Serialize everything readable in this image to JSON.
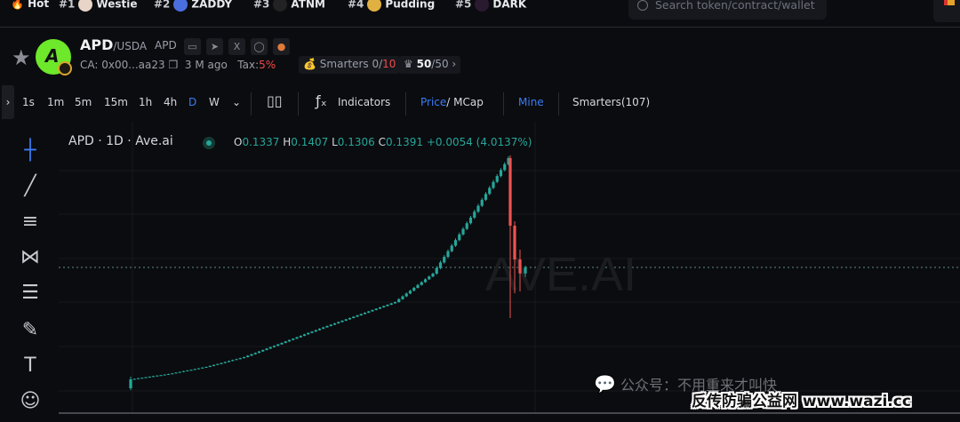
{
  "topbar": {
    "hot_label": "Hot",
    "items": [
      {
        "rank": "#1",
        "name": "Westie",
        "color": "#e8d5c8"
      },
      {
        "rank": "#2",
        "name": "ZADDY",
        "color": "#4a6ee0"
      },
      {
        "rank": "#3",
        "name": "ATNM",
        "color": "#222"
      },
      {
        "rank": "#4",
        "name": "Pudding",
        "color": "#e0b040"
      },
      {
        "rank": "#5",
        "name": "DARK",
        "color": "#2a1a30"
      }
    ],
    "search_placeholder": "Search token/contract/wallet"
  },
  "token": {
    "symbol": "APD",
    "pair": "/USDA",
    "symbol2": "APD",
    "ca": "CA: 0x00...aa23",
    "age": "3 M ago",
    "tax_label": "Tax:",
    "tax_value": "5%",
    "smarters_label": "Smarters",
    "smarters_value": "0/",
    "smarters_total": "10",
    "holders_value": "50",
    "holders_total": "/50"
  },
  "toolbar": {
    "timeframes": [
      "1s",
      "1m",
      "5m",
      "15m",
      "1h",
      "4h",
      "D",
      "W"
    ],
    "active_timeframe": "D",
    "indicators": "Indicators",
    "price": "Price",
    "mcap": "/ MCap",
    "mine": "Mine",
    "smarters": "Smarters(107)"
  },
  "legend": {
    "title": "APD · 1D · Ave.ai",
    "o": "0.1337",
    "h": "0.1407",
    "l": "0.1306",
    "c": "0.1391",
    "change": "+0.0054 (4.0137%)"
  },
  "watermarks": {
    "chart": "AVE.AI",
    "wechat": "公众号：不用重来才叫快",
    "site": "反传防骗公益网 www.wazi.cc"
  },
  "colors": {
    "up": "#26a69a",
    "down": "#ef5350",
    "accent": "#3b7cf5"
  },
  "chart_data": {
    "type": "candlestick",
    "first_open": 0.0303,
    "closes": [
      0.0383,
      0.0388,
      0.0393,
      0.0397,
      0.0402,
      0.0407,
      0.0412,
      0.0417,
      0.0421,
      0.0426,
      0.0431,
      0.0437,
      0.0444,
      0.045,
      0.0457,
      0.0463,
      0.0469,
      0.0476,
      0.0482,
      0.0489,
      0.0495,
      0.0504,
      0.0513,
      0.0521,
      0.053,
      0.0539,
      0.0548,
      0.0557,
      0.0565,
      0.0574,
      0.0583,
      0.0596,
      0.0609,
      0.0621,
      0.0634,
      0.0647,
      0.066,
      0.0673,
      0.0685,
      0.0698,
      0.0711,
      0.0724,
      0.0737,
      0.0749,
      0.0762,
      0.0775,
      0.0788,
      0.0801,
      0.0813,
      0.0826,
      0.0839,
      0.0851,
      0.0863,
      0.0875,
      0.0887,
      0.0899,
      0.0911,
      0.0923,
      0.0935,
      0.0947,
      0.0959,
      0.0971,
      0.0983,
      0.0995,
      0.1007,
      0.1019,
      0.1031,
      0.1043,
      0.1055,
      0.1067,
      0.1079,
      0.1105,
      0.113,
      0.1156,
      0.1181,
      0.1207,
      0.1233,
      0.1258,
      0.1284,
      0.1309,
      0.1335,
      0.1385,
      0.1436,
      0.1486,
      0.1537,
      0.1587,
      0.1637,
      0.1688,
      0.1738,
      0.1789,
      0.1839,
      0.1893,
      0.1946,
      0.2,
      0.2053,
      0.2107,
      0.2161,
      0.2214,
      0.2268,
      0.2321,
      0.2375
    ],
    "last_candles": [
      {
        "o": 0.2375,
        "h": 0.24,
        "l": 0.0935,
        "c": 0.1767
      },
      {
        "o": 0.1767,
        "h": 0.1807,
        "l": 0.1159,
        "c": 0.1463
      },
      {
        "o": 0.1463,
        "h": 0.1551,
        "l": 0.1175,
        "c": 0.1337
      },
      {
        "o": 0.1337,
        "h": 0.1407,
        "l": 0.1306,
        "c": 0.1391
      }
    ],
    "last_price": 0.1391
  }
}
